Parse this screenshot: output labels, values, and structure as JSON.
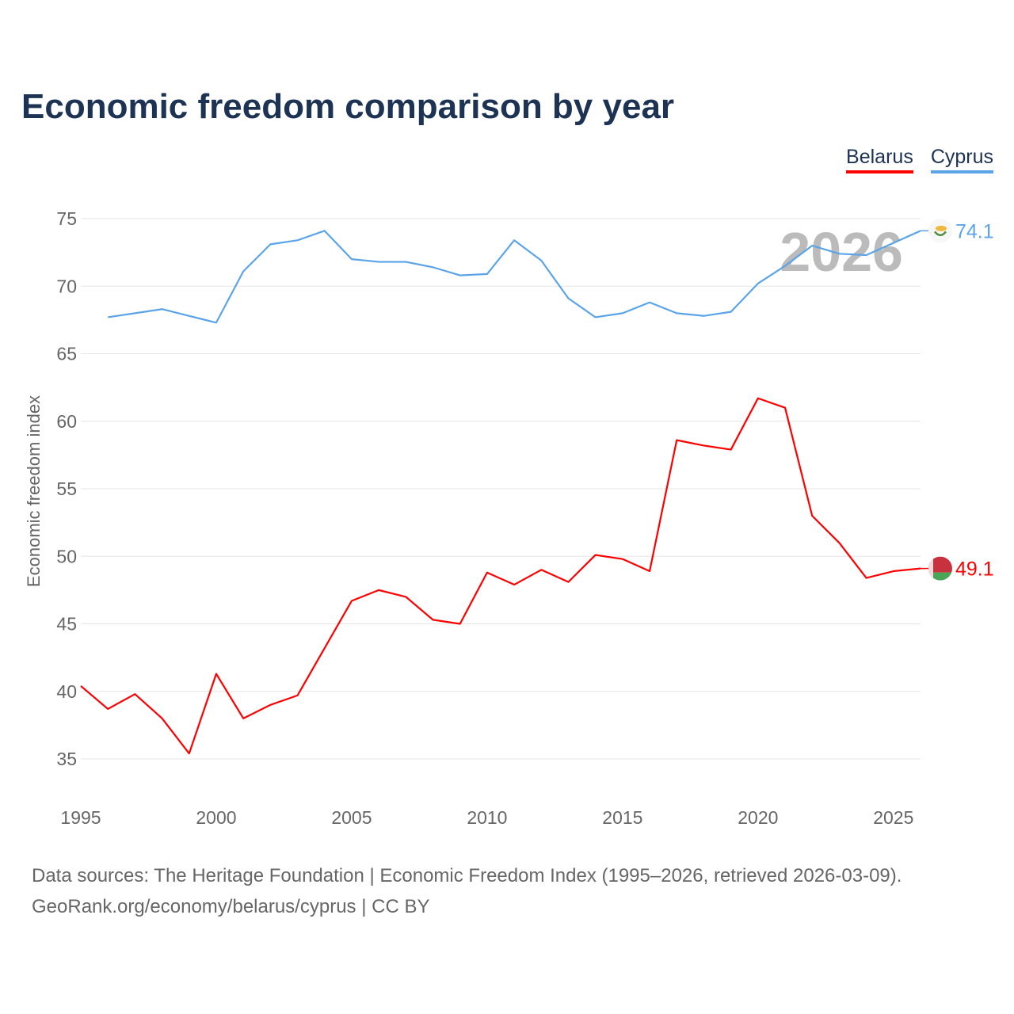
{
  "title": "Economic freedom comparison by year",
  "footer": {
    "line1": "Data sources: The Heritage Foundation | Economic Freedom Index (1995–2026, retrieved 2026-03-09).",
    "line2": "GeoRank.org/economy/belarus/cyprus | CC BY"
  },
  "chart_data": {
    "type": "line",
    "title": "Economic freedom comparison by year",
    "xlabel": "",
    "ylabel": "Economic freedom index",
    "xlim": [
      1995,
      2026
    ],
    "ylim": [
      35,
      75
    ],
    "xticks": [
      1995,
      2000,
      2005,
      2010,
      2015,
      2020,
      2025
    ],
    "yticks": [
      35,
      40,
      45,
      50,
      55,
      60,
      65,
      70,
      75
    ],
    "grid": true,
    "legend": "top-right",
    "year_label": "2026",
    "series": [
      {
        "name": "Belarus",
        "color": "#ff0000",
        "end_label": "49.1",
        "flag": "belarus-flag",
        "x": [
          1995,
          1996,
          1997,
          1998,
          1999,
          2000,
          2001,
          2002,
          2003,
          2004,
          2005,
          2006,
          2007,
          2008,
          2009,
          2010,
          2011,
          2012,
          2013,
          2014,
          2015,
          2016,
          2017,
          2018,
          2019,
          2020,
          2021,
          2022,
          2023,
          2024,
          2025,
          2026
        ],
        "values": [
          40.4,
          38.7,
          39.8,
          38.0,
          35.4,
          41.3,
          38.0,
          39.0,
          39.7,
          43.2,
          46.7,
          47.5,
          47.0,
          45.3,
          45.0,
          48.8,
          47.9,
          49.0,
          48.1,
          50.1,
          49.8,
          48.9,
          58.6,
          58.2,
          57.9,
          61.7,
          61.0,
          53.0,
          51.0,
          48.4,
          48.9,
          49.1
        ]
      },
      {
        "name": "Cyprus",
        "color": "#5ba4ea",
        "end_label": "74.1",
        "flag": "cyprus-flag",
        "x": [
          1996,
          1997,
          1998,
          1999,
          2000,
          2001,
          2002,
          2003,
          2004,
          2005,
          2006,
          2007,
          2008,
          2009,
          2010,
          2011,
          2012,
          2013,
          2014,
          2015,
          2016,
          2017,
          2018,
          2019,
          2020,
          2021,
          2022,
          2023,
          2024,
          2025,
          2026
        ],
        "values": [
          67.7,
          68.0,
          68.3,
          67.8,
          67.3,
          71.1,
          73.1,
          73.4,
          74.1,
          72.0,
          71.8,
          71.8,
          71.4,
          70.8,
          70.9,
          73.4,
          71.9,
          69.1,
          67.7,
          68.0,
          68.8,
          68.0,
          67.8,
          68.1,
          70.2,
          71.5,
          73.0,
          72.4,
          72.3,
          73.2,
          74.1
        ]
      }
    ]
  }
}
